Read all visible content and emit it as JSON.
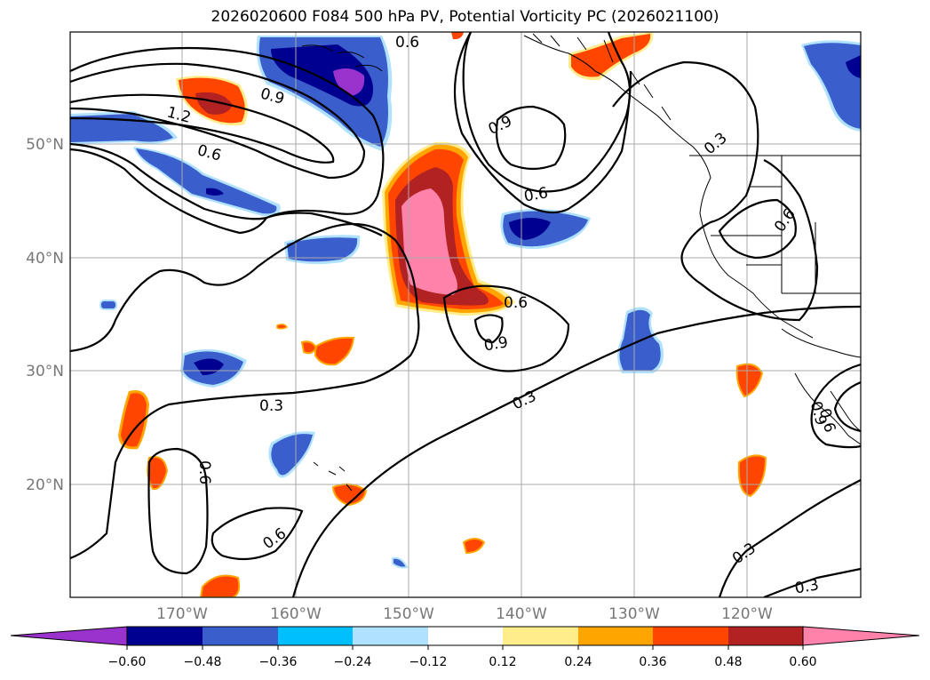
{
  "title": "2026020600 F084 500 hPa PV, Potential Vorticity PC (2026021100)",
  "colors": {
    "neg_060": "#9a32cd",
    "neg_048": "#000090",
    "neg_036": "#3a5fcd",
    "neg_024": "#00bfff",
    "neg_012": "#b0e2ff",
    "zero": "#ffffff",
    "pos_012": "#ffec8b",
    "pos_024": "#ffa500",
    "pos_036": "#ff4500",
    "pos_048": "#b22222",
    "pos_060": "#ff82ab",
    "contour": "#000000",
    "grid": "#aaaaaa",
    "axis_label": "#777777"
  },
  "axes": {
    "lat_labels": [
      {
        "text": "50°N",
        "value": 50
      },
      {
        "text": "40°N",
        "value": 40
      },
      {
        "text": "30°N",
        "value": 30
      },
      {
        "text": "20°N",
        "value": 20
      }
    ],
    "lon_labels": [
      {
        "text": "170°W",
        "value": -170
      },
      {
        "text": "160°W",
        "value": -160
      },
      {
        "text": "150°W",
        "value": -150
      },
      {
        "text": "140°W",
        "value": -140
      },
      {
        "text": "130°W",
        "value": -130
      },
      {
        "text": "120°W",
        "value": -120
      }
    ]
  },
  "contour_labels": [
    {
      "text": "0.6"
    },
    {
      "text": "0.9"
    },
    {
      "text": "1.2"
    },
    {
      "text": "0.6"
    },
    {
      "text": "0.9"
    },
    {
      "text": "0.6"
    },
    {
      "text": "0.3"
    },
    {
      "text": "0.6"
    },
    {
      "text": "0.6"
    },
    {
      "text": "0.9"
    },
    {
      "text": "0.3"
    },
    {
      "text": "0.3"
    },
    {
      "text": "0.6"
    },
    {
      "text": "0.6"
    },
    {
      "text": "0.9"
    },
    {
      "text": "0.6"
    },
    {
      "text": "0.3"
    },
    {
      "text": "0.3"
    }
  ],
  "colorbar": {
    "ticks": [
      "−0.60",
      "−0.48",
      "−0.36",
      "−0.24",
      "−0.12",
      "0.12",
      "0.24",
      "0.36",
      "0.48",
      "0.60"
    ]
  }
}
